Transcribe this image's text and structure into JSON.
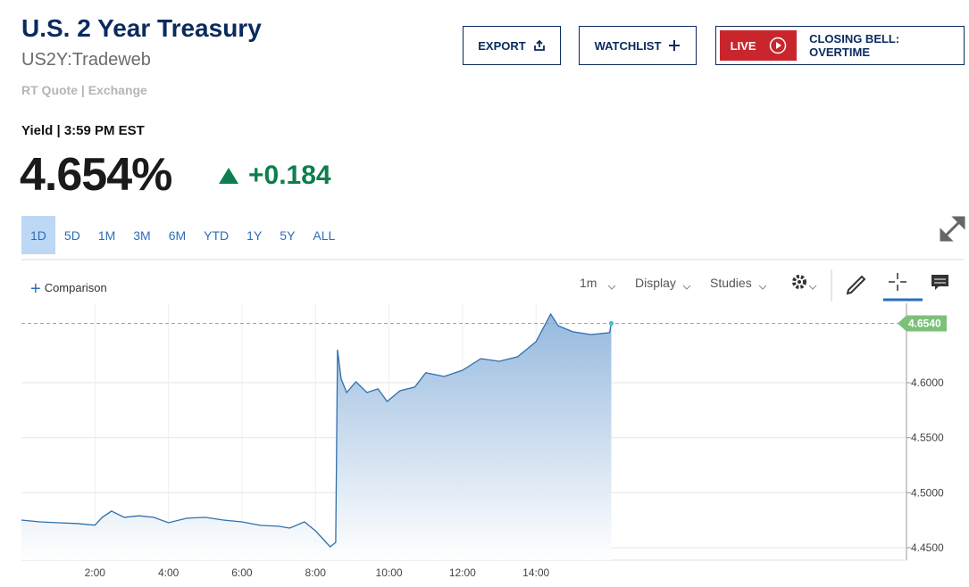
{
  "header": {
    "title": "U.S. 2 Year Treasury",
    "symbol": "US2Y:Tradeweb",
    "quote_type": "RT Quote | Exchange",
    "buttons": {
      "export": "EXPORT",
      "watchlist": "WATCHLIST",
      "live": "LIVE",
      "closing_bell": "CLOSING BELL: OVERTIME"
    },
    "yield_line": "Yield | 3:59 PM EST",
    "price": "4.654%",
    "change": "+0.184"
  },
  "tabs": {
    "items": [
      "1D",
      "5D",
      "1M",
      "3M",
      "6M",
      "YTD",
      "1Y",
      "5Y",
      "ALL"
    ],
    "selected": 0
  },
  "toolbar": {
    "comparison": "Comparison",
    "interval": "1m",
    "display": "Display",
    "studies": "Studies"
  },
  "chart_data": {
    "type": "area",
    "x": [
      0,
      0.5,
      1,
      1.5,
      2,
      2.2,
      2.45,
      2.8,
      3.2,
      3.6,
      4,
      4.5,
      5,
      5.5,
      6,
      6.5,
      7,
      7.3,
      7.7,
      8,
      8.2,
      8.4,
      8.55,
      8.6,
      8.7,
      8.85,
      9.1,
      9.4,
      9.7,
      9.95,
      10.3,
      10.7,
      11,
      11.5,
      12,
      12.5,
      13,
      13.5,
      14,
      14.4,
      14.6,
      15,
      15.5,
      16,
      16.05
    ],
    "series": [
      {
        "name": "US2Y",
        "color": "#2f6fad",
        "values": [
          4.4751,
          4.4735,
          4.4727,
          4.472,
          4.4705,
          4.4776,
          4.4833,
          4.4776,
          4.479,
          4.4776,
          4.4727,
          4.4768,
          4.4776,
          4.4751,
          4.4735,
          4.4703,
          4.4695,
          4.4678,
          4.4735,
          4.4654,
          4.4581,
          4.4508,
          4.4549,
          4.63,
          4.6033,
          4.5911,
          4.6009,
          4.5911,
          4.5944,
          4.583,
          4.5927,
          4.596,
          4.609,
          4.6057,
          4.6114,
          4.6219,
          4.6195,
          4.6236,
          4.6373,
          4.6625,
          4.6519,
          4.6463,
          4.6438,
          4.6455,
          4.654
        ]
      }
    ],
    "xlim": [
      0,
      24.08
    ],
    "xticks": [
      {
        "value": 2,
        "label": "2:00"
      },
      {
        "value": 4,
        "label": "4:00"
      },
      {
        "value": 6,
        "label": "6:00"
      },
      {
        "value": 8,
        "label": "8:00"
      },
      {
        "value": 10,
        "label": "10:00"
      },
      {
        "value": 12,
        "label": "12:00"
      },
      {
        "value": 14,
        "label": "14:00"
      }
    ],
    "ylim": [
      4.4386,
      4.6722
    ],
    "yticks": [
      {
        "value": 4.45,
        "label": "4.4500"
      },
      {
        "value": 4.5,
        "label": "4.5000"
      },
      {
        "value": 4.55,
        "label": "4.5500"
      },
      {
        "value": 4.6,
        "label": "4.6000"
      }
    ],
    "reference_line": {
      "value": 4.654,
      "label": "4.6540",
      "color": "#7cc17a"
    },
    "grid": true
  }
}
